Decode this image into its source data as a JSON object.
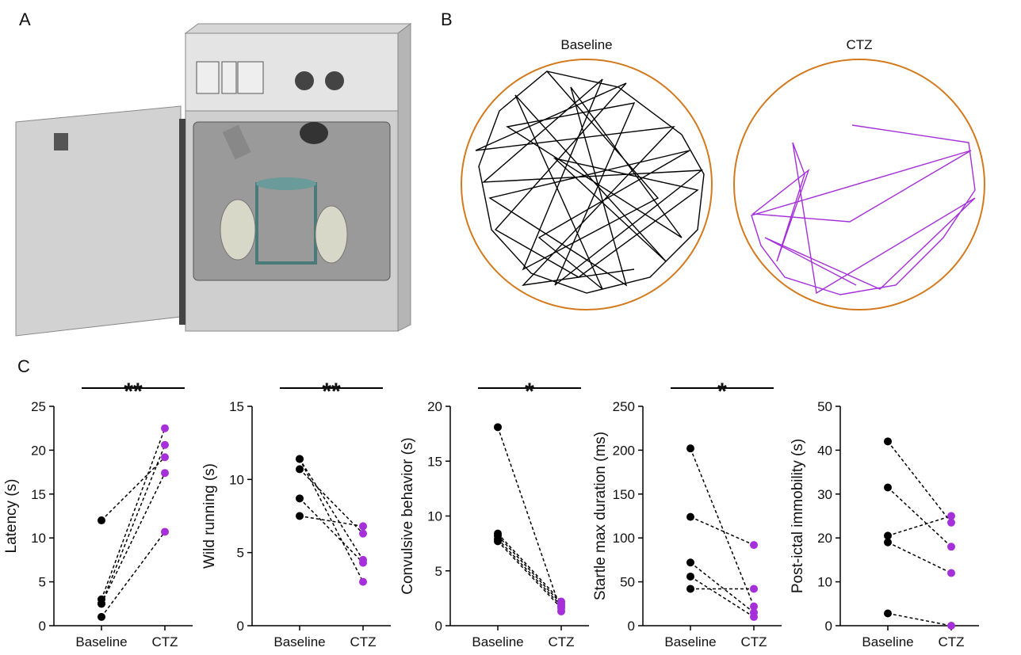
{
  "panel_labels": [
    "A",
    "B",
    "C"
  ],
  "trajectory_titles": [
    "Baseline",
    "CTZ"
  ],
  "chart_data": [
    {
      "type": "paired",
      "y_label": "Latency (s)",
      "categories": [
        "Baseline",
        "CTZ"
      ],
      "colors": [
        "#000000",
        "#a52fd8"
      ],
      "baseline": [
        12,
        3,
        2.5,
        2.5,
        1
      ],
      "ctz": [
        19.2,
        22.5,
        20.6,
        17.4,
        10.7
      ],
      "ylim": [
        0,
        25
      ],
      "yticks": [
        0,
        5,
        10,
        15,
        20,
        25
      ],
      "significance": "**"
    },
    {
      "type": "paired",
      "y_label": "Wild running (s)",
      "categories": [
        "Baseline",
        "CTZ"
      ],
      "colors": [
        "#000000",
        "#a52fd8"
      ],
      "baseline": [
        11.4,
        11.4,
        10.7,
        8.7,
        7.5
      ],
      "ctz": [
        3.0,
        4.5,
        6.3,
        4.3,
        6.8
      ],
      "ylim": [
        0,
        15
      ],
      "yticks": [
        0,
        5,
        10,
        15
      ],
      "significance": "**"
    },
    {
      "type": "paired",
      "y_label": "Convulsive behavior (s)",
      "categories": [
        "Baseline",
        "CTZ"
      ],
      "colors": [
        "#000000",
        "#a52fd8"
      ],
      "baseline": [
        18.1,
        8.4,
        8.2,
        7.9,
        7.7
      ],
      "ctz": [
        1.3,
        2.2,
        2.0,
        1.8,
        1.6
      ],
      "ylim": [
        0,
        20
      ],
      "yticks": [
        0,
        5,
        10,
        15,
        20
      ],
      "significance": "*"
    },
    {
      "type": "paired",
      "y_label": "Startle max duration (ms)",
      "categories": [
        "Baseline",
        "CTZ"
      ],
      "colors": [
        "#000000",
        "#a52fd8"
      ],
      "baseline": [
        202,
        124,
        72,
        56,
        42
      ],
      "ctz": [
        22,
        92,
        15,
        10,
        42
      ],
      "ylim": [
        0,
        250
      ],
      "yticks": [
        0,
        50,
        100,
        150,
        200,
        250
      ],
      "significance": "*"
    },
    {
      "type": "paired",
      "y_label": "Post-ictal immobility (s)",
      "categories": [
        "Baseline",
        "CTZ"
      ],
      "colors": [
        "#000000",
        "#a52fd8"
      ],
      "baseline": [
        42,
        31.5,
        20.5,
        19,
        2.8
      ],
      "ctz": [
        23.5,
        18,
        25,
        12,
        0
      ],
      "ylim": [
        0,
        50
      ],
      "yticks": [
        0,
        10,
        20,
        30,
        40,
        50
      ]
    }
  ]
}
